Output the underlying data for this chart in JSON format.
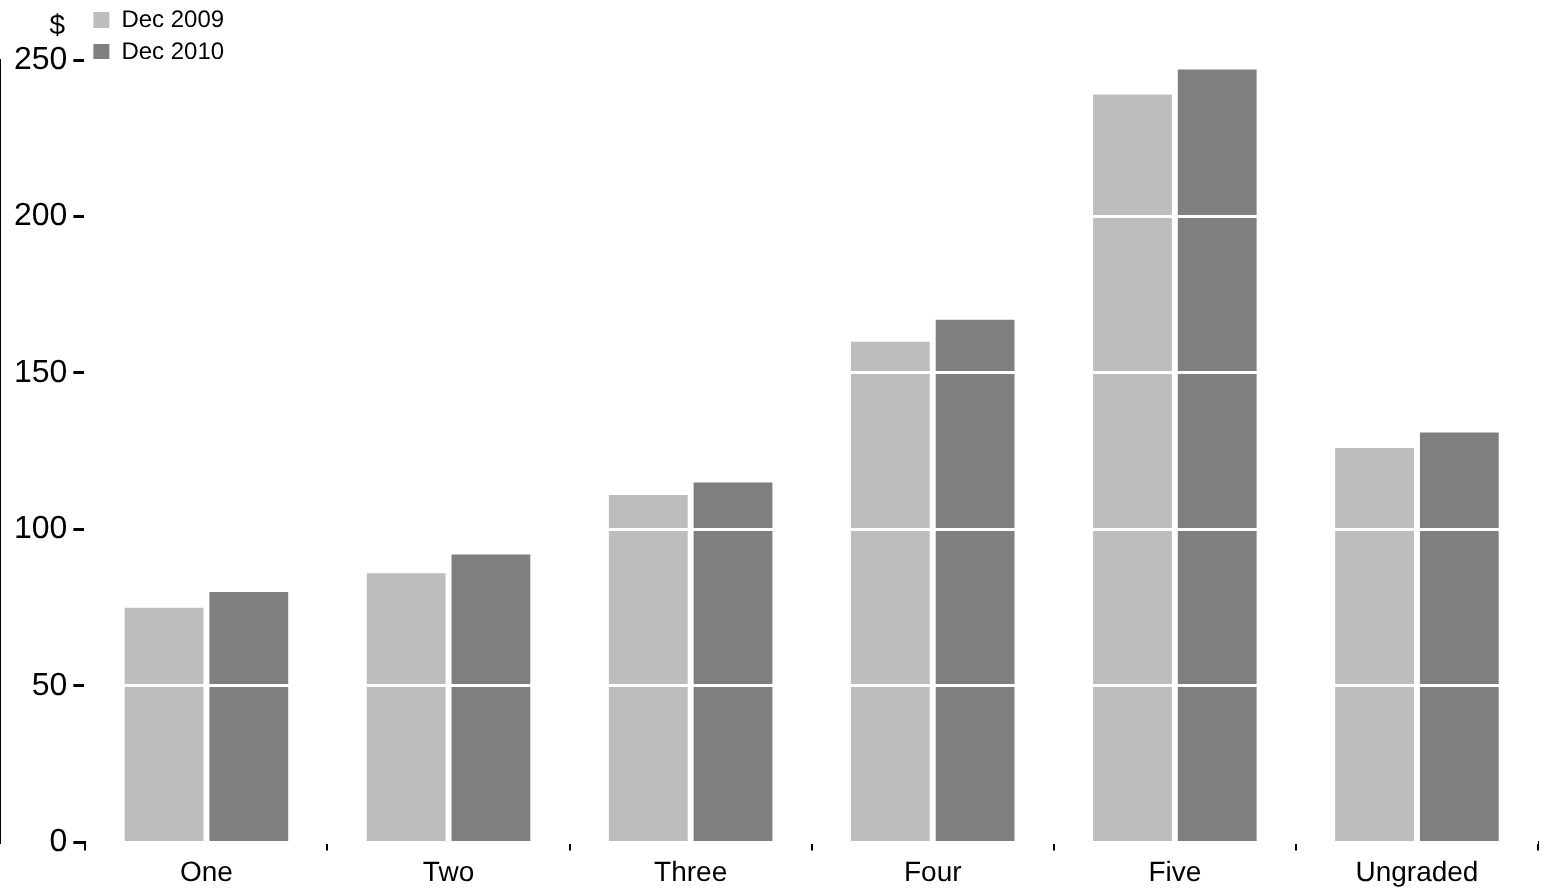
{
  "chart_data": {
    "type": "bar",
    "ylabel": "$",
    "categories": [
      "One",
      "Two",
      "Three",
      "Four",
      "Five",
      "Ungraded"
    ],
    "series": [
      {
        "name": "Dec 2009",
        "color": "#bdbdbd",
        "values": [
          75,
          86,
          111,
          160,
          239,
          126
        ]
      },
      {
        "name": "Dec 2010",
        "color": "#7f7f7f",
        "values": [
          80,
          92,
          115,
          167,
          247,
          131
        ]
      }
    ],
    "ylim": [
      0,
      250
    ],
    "yticks": [
      0,
      50,
      100,
      150,
      200,
      250
    ],
    "grid": "y",
    "legend": "top left"
  }
}
